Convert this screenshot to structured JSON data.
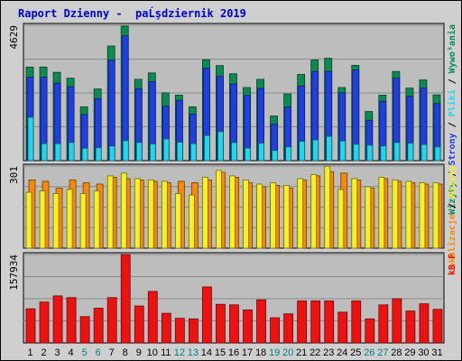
{
  "title": "Raport Dzienny -  paĹşdziernik 2019",
  "colors": {
    "panel": "#bdbdbd",
    "grid": "#8c8c8c",
    "weekend": "#008080",
    "weekday": "#000000",
    "odwiedziny": "#0b8a54",
    "strony": "#1f3fe0",
    "pliki": "#22d6ee",
    "lokalizacje": "#f58a0a",
    "wizyty": "#f8f020",
    "kb": "#ee1111"
  },
  "chart_data": [
    {
      "type": "bar",
      "panel": "top",
      "ymax_label": "4629",
      "categories": [
        "1",
        "2",
        "3",
        "4",
        "5",
        "6",
        "7",
        "8",
        "9",
        "10",
        "11",
        "12",
        "13",
        "14",
        "15",
        "16",
        "17",
        "18",
        "19",
        "20",
        "21",
        "22",
        "23",
        "24",
        "25",
        "26",
        "27",
        "28",
        "29",
        "30",
        "31"
      ],
      "weekend_days": [
        "5",
        "6",
        "12",
        "13",
        "19",
        "20",
        "26",
        "27"
      ],
      "ylim": [
        0,
        4629
      ],
      "series": [
        {
          "values": [
            3200,
            3200,
            3020,
            2820,
            1840,
            2450,
            3920,
            4600,
            2780,
            3000,
            2320,
            2240,
            1840,
            3450,
            3250,
            2970,
            2500,
            2780,
            1530,
            2280,
            2950,
            3440,
            3500,
            2500,
            3260,
            1680,
            2240,
            3050,
            2480,
            2760,
            2250
          ]
        },
        {
          "values": [
            2850,
            2850,
            2650,
            2530,
            1580,
            2120,
            3440,
            4270,
            2460,
            2700,
            1860,
            2060,
            1590,
            3160,
            2880,
            2620,
            2230,
            2470,
            1250,
            1830,
            2550,
            3050,
            3050,
            2320,
            3100,
            1380,
            2030,
            2820,
            2200,
            2480,
            1950
          ]
        },
        {
          "values": [
            1480,
            580,
            580,
            620,
            420,
            440,
            500,
            680,
            620,
            570,
            740,
            630,
            580,
            860,
            990,
            620,
            430,
            600,
            350,
            470,
            660,
            710,
            830,
            670,
            560,
            530,
            500,
            620,
            600,
            550,
            470
          ]
        }
      ],
      "right_label": [
        {
          "text": "Wizyty",
          "color_key": "odwiedziny"
        },
        {
          "text": " / ",
          "color_key": "weekday"
        },
        {
          "text": "Strony",
          "color_key": "strony"
        },
        {
          "text": " / ",
          "color_key": "weekday"
        },
        {
          "text": "Pliki",
          "color_key": "pliki"
        },
        {
          "text": " / ",
          "color_key": "weekday"
        },
        {
          "text": "Wywo³ania",
          "color_key": "odwiedziny"
        }
      ]
    },
    {
      "type": "bar",
      "panel": "middle",
      "ymax_label": "301",
      "ylim": [
        0,
        301
      ],
      "series": [
        {
          "values": [
            205,
            210,
            200,
            215,
            200,
            210,
            215,
            235,
            200,
            205,
            190,
            200,
            195,
            200,
            235,
            220,
            200,
            190,
            170,
            190,
            210,
            220,
            230,
            215,
            205,
            180,
            200,
            210,
            200,
            195,
            195
          ]
        },
        {
          "values": [
            250,
            245,
            220,
            250,
            240,
            235,
            260,
            255,
            250,
            245,
            240,
            245,
            240,
            250,
            278,
            260,
            240,
            225,
            230,
            220,
            250,
            265,
            280,
            275,
            250,
            220,
            255,
            245,
            240,
            235,
            235
          ]
        },
        {
          "values": [
            250,
            240,
            220,
            245,
            235,
            235,
            265,
            275,
            255,
            250,
            245,
            245,
            240,
            260,
            285,
            265,
            250,
            235,
            240,
            230,
            255,
            270,
            300,
            270,
            255,
            225,
            260,
            250,
            245,
            240,
            240
          ]
        }
      ],
      "right_label": [
        {
          "text": "Lokalizacje",
          "color_key": "lokalizacje"
        },
        {
          "text": " / ",
          "color_key": "weekday"
        },
        {
          "text": "Wizyty",
          "color_key": "wizyty"
        }
      ]
    },
    {
      "type": "bar",
      "panel": "bottom",
      "ymax_label": "157934",
      "ylim": [
        0,
        157934
      ],
      "series": [
        {
          "values": [
            61000,
            73000,
            84000,
            81000,
            47000,
            62000,
            81000,
            158000,
            66000,
            92000,
            53000,
            44000,
            43000,
            100000,
            69000,
            68000,
            59000,
            77000,
            45000,
            52000,
            75000,
            75000,
            75000,
            55000,
            75000,
            43000,
            68000,
            79000,
            57000,
            70000,
            60000
          ]
        }
      ],
      "right_label": [
        {
          "text": "kB F",
          "color_key": "kb"
        }
      ]
    }
  ]
}
